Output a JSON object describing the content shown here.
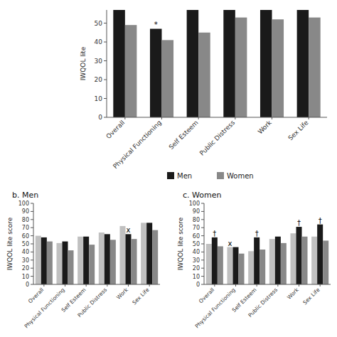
{
  "chart_data": [
    {
      "type": "bar",
      "ylabel": "IWQOL lite",
      "categories": [
        "Overall",
        "Physical Functioning",
        "Self Esteem",
        "Public Distress",
        "Work",
        "Sex Life"
      ],
      "series": [
        {
          "name": "Men",
          "color": "#1a1a1a",
          "values": [
            57,
            47,
            57,
            57,
            57,
            57
          ]
        },
        {
          "name": "Women",
          "color": "#888888",
          "values": [
            49,
            41,
            45,
            53,
            52,
            53
          ]
        }
      ],
      "ylim": [
        0,
        57
      ],
      "yticks": [
        0,
        10,
        20,
        30,
        40,
        50
      ],
      "legend": "bottom",
      "annotations": [
        {
          "text": "*",
          "series": 0,
          "index": 1
        }
      ]
    },
    {
      "type": "bar",
      "title": "b.  Men",
      "ylabel": "IWQOL lite score",
      "categories": [
        "Overall",
        "Physical Functioning",
        "Self Esteem",
        "Public Distress",
        "Work",
        "Sex Life"
      ],
      "series": [
        {
          "color": "#c0c0c0",
          "values": [
            60,
            51,
            59,
            64,
            72,
            76
          ]
        },
        {
          "color": "#1a1a1a",
          "values": [
            58,
            53,
            59,
            62,
            62,
            76
          ]
        },
        {
          "color": "#888888",
          "values": [
            53,
            42,
            49,
            55,
            56,
            67
          ]
        }
      ],
      "ylim": [
        0,
        100
      ],
      "yticks": [
        0,
        10,
        20,
        30,
        40,
        50,
        60,
        70,
        80,
        90,
        100
      ],
      "annotations": [
        {
          "text": "x",
          "series": 1,
          "index": 4
        }
      ]
    },
    {
      "type": "bar",
      "title": "c.  Women",
      "ylabel": "IWQOL lite score",
      "categories": [
        "Overall",
        "Physical Functioning",
        "Self Esteem",
        "Public Distress",
        "Work",
        "Sex Life"
      ],
      "series": [
        {
          "color": "#c0c0c0",
          "values": [
            50,
            46,
            41,
            56,
            63,
            59
          ]
        },
        {
          "color": "#1a1a1a",
          "values": [
            58,
            46,
            58,
            59,
            71,
            74
          ]
        },
        {
          "color": "#888888",
          "values": [
            47,
            38,
            43,
            51,
            59,
            54
          ]
        }
      ],
      "ylim": [
        0,
        100
      ],
      "yticks": [
        0,
        10,
        20,
        30,
        40,
        50,
        60,
        70,
        80,
        90,
        100
      ],
      "annotations": [
        {
          "text": "†",
          "series": 1,
          "index": 0
        },
        {
          "text": "†",
          "series": 1,
          "index": 2
        },
        {
          "text": "†",
          "series": 1,
          "index": 4
        },
        {
          "text": "†",
          "series": 1,
          "index": 5
        },
        {
          "text": "x",
          "series": 0,
          "index": 1
        }
      ]
    }
  ]
}
